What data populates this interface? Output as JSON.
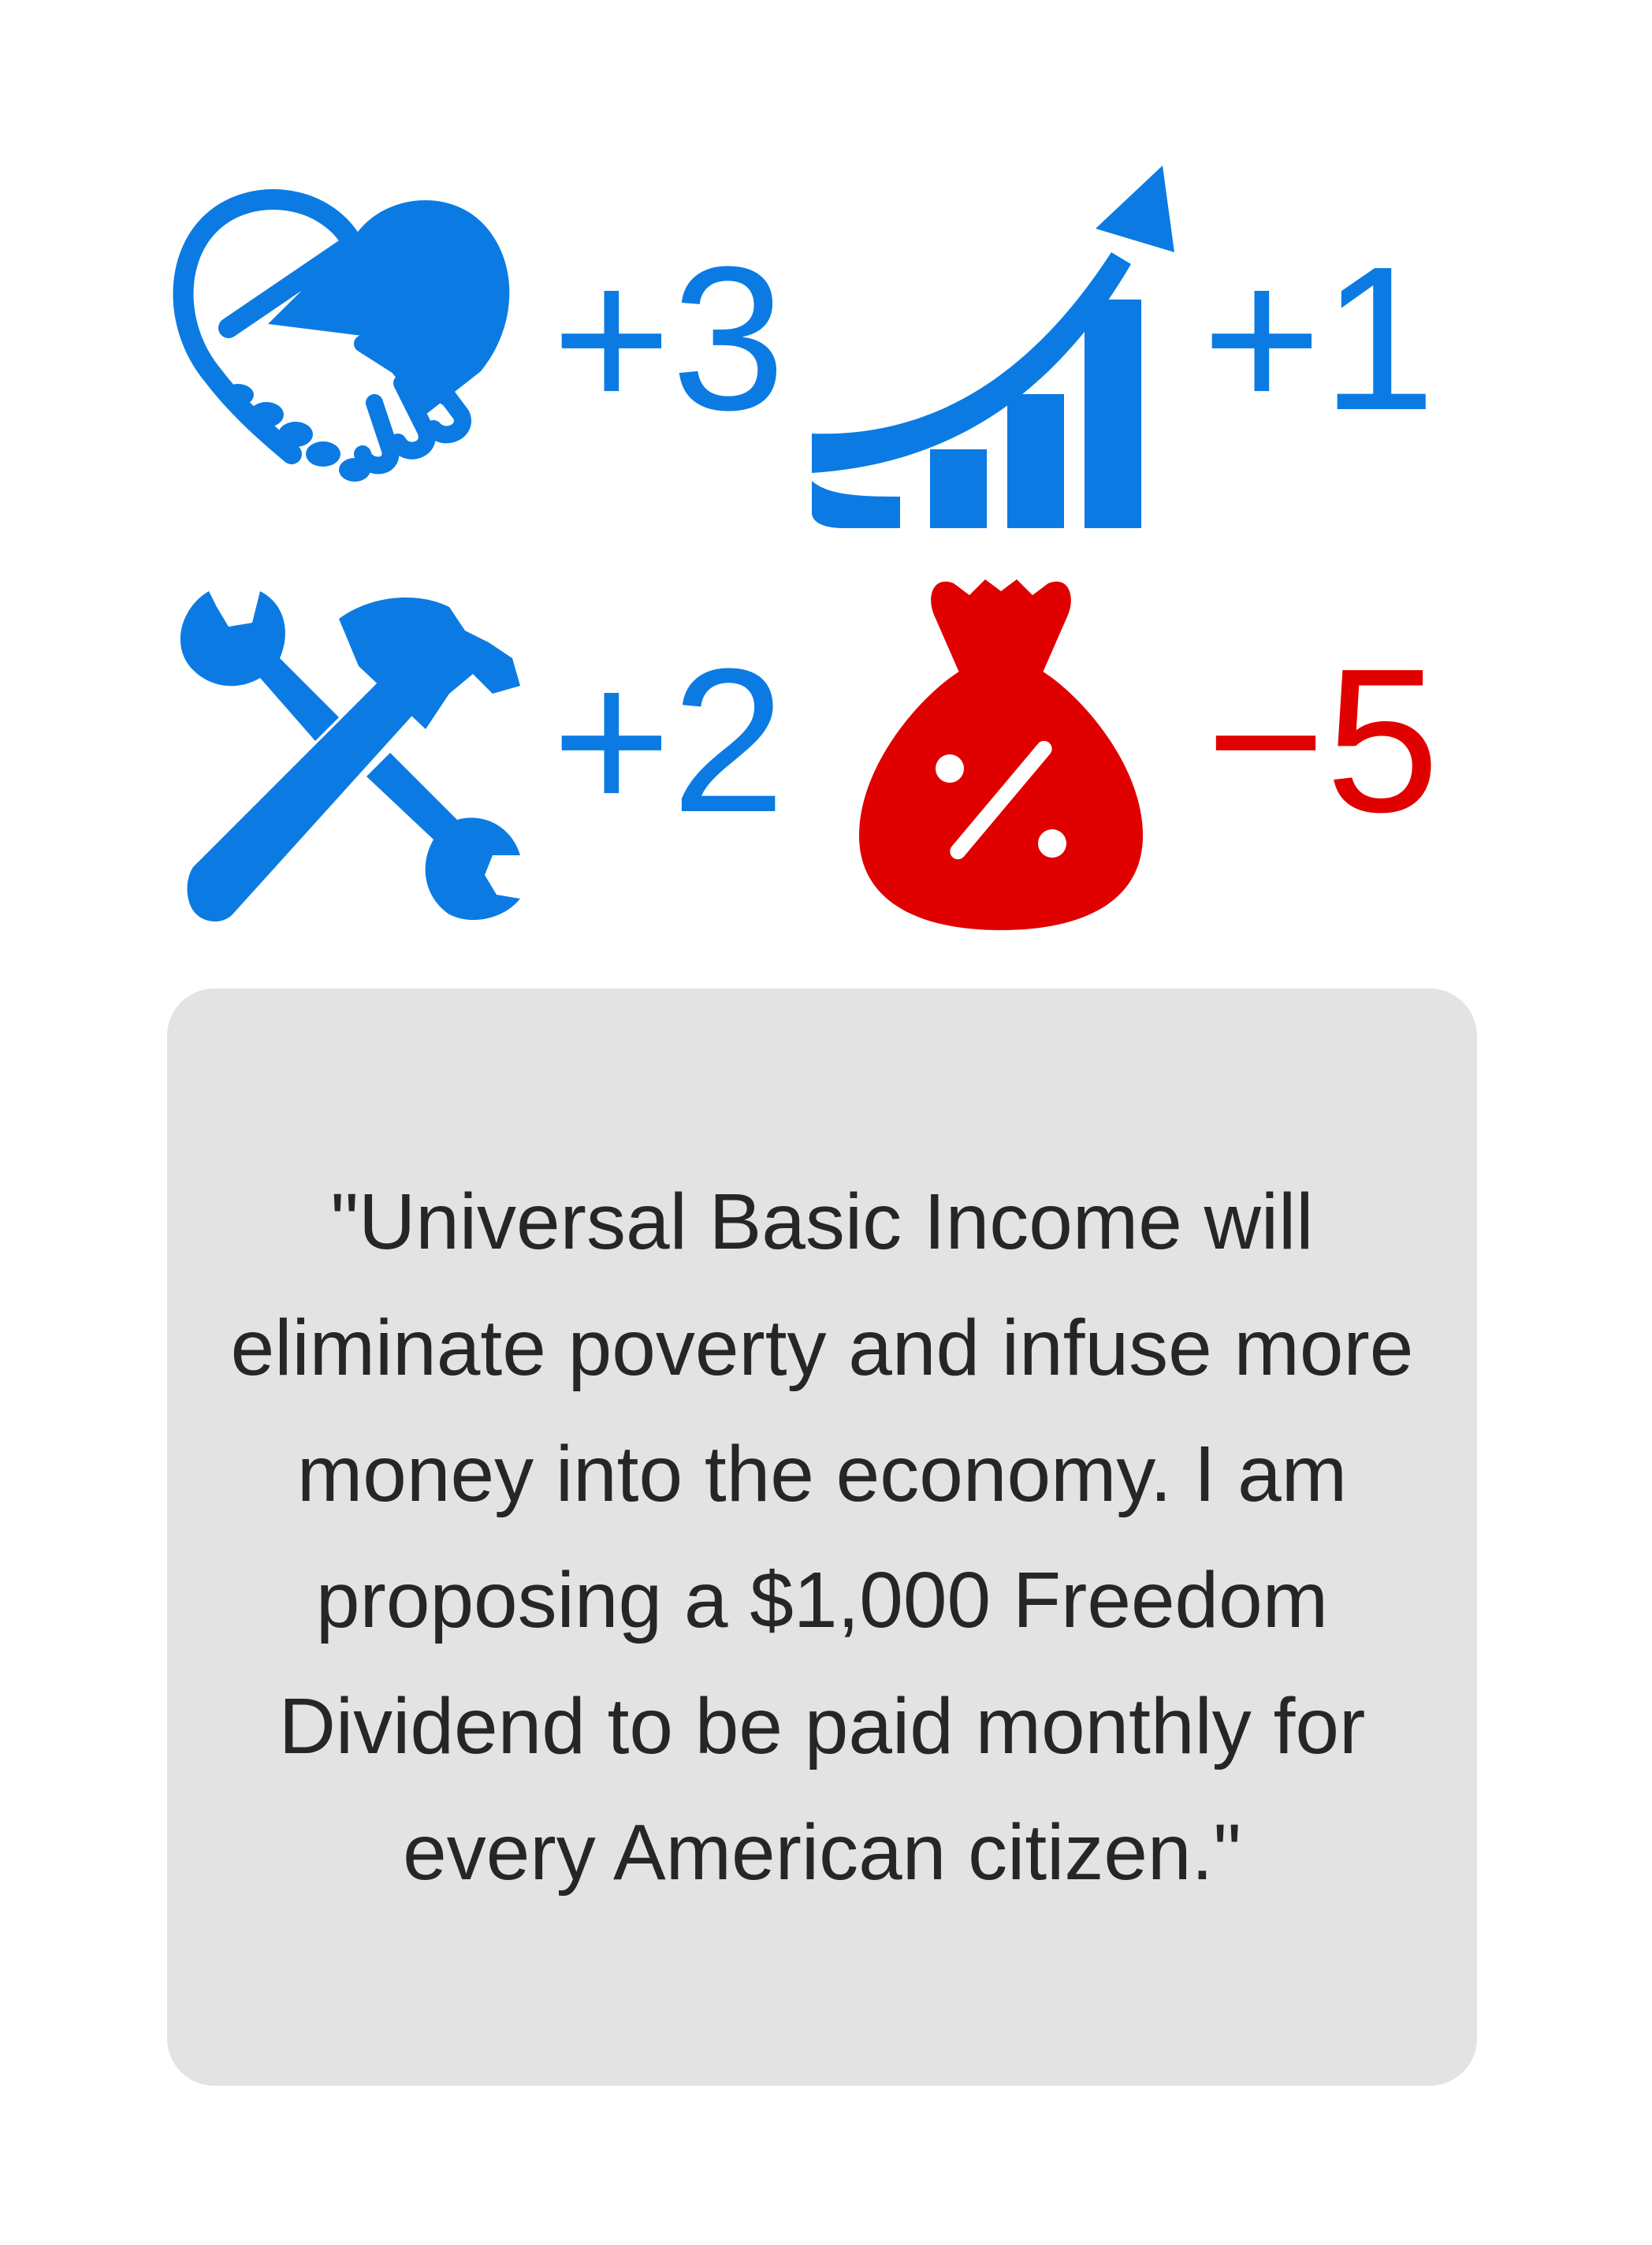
{
  "stats": [
    {
      "icon": "handshake-heart-icon",
      "value": "+3",
      "color": "#0b7be3"
    },
    {
      "icon": "growth-chart-icon",
      "value": "+1",
      "color": "#0b7be3"
    },
    {
      "icon": "tools-icon",
      "value": "+2",
      "color": "#0b7be3"
    },
    {
      "icon": "money-bag-icon",
      "value": "−5",
      "color": "#e00000"
    }
  ],
  "card": {
    "quote": "\"Universal Basic Income will eliminate poverty and infuse more money into the economy. I am proposing a $1,000 Freedom Dividend to be paid monthly for every American citizen.\""
  },
  "colors": {
    "positive": "#0b7be3",
    "negative": "#e00000",
    "card_background": "#e3e3e3",
    "text": "#252628"
  }
}
